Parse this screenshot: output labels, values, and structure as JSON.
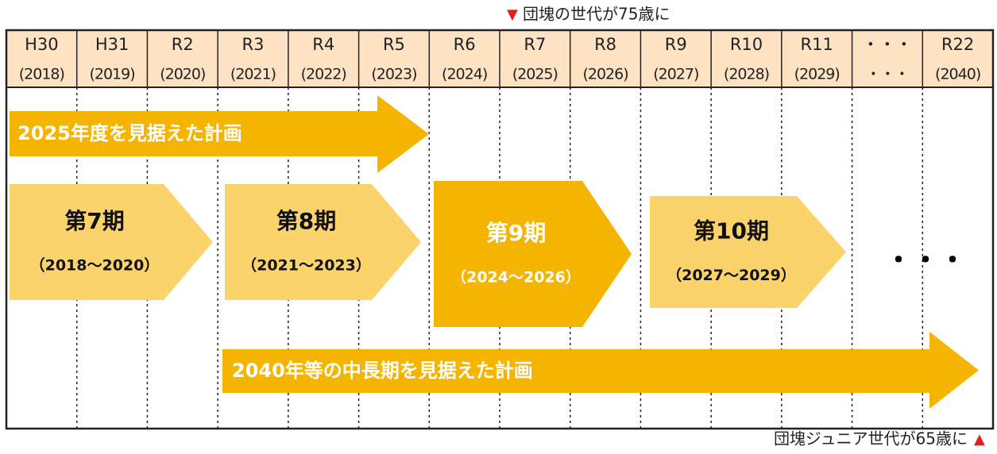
{
  "top_note": {
    "marker": "▼",
    "text": "団塊の世代が75歳に"
  },
  "bottom_note": {
    "text": "団塊ジュニア世代が65歳に",
    "marker": "▲"
  },
  "columns": [
    {
      "era": "H30",
      "year": "(2018)"
    },
    {
      "era": "H31",
      "year": "(2019)"
    },
    {
      "era": "R2",
      "year": "(2020)"
    },
    {
      "era": "R3",
      "year": "(2021)"
    },
    {
      "era": "R4",
      "year": "(2022)"
    },
    {
      "era": "R5",
      "year": "(2023)"
    },
    {
      "era": "R6",
      "year": "(2024)"
    },
    {
      "era": "R7",
      "year": "(2025)"
    },
    {
      "era": "R8",
      "year": "(2026)"
    },
    {
      "era": "R9",
      "year": "(2027)"
    },
    {
      "era": "R10",
      "year": "(2028)"
    },
    {
      "era": "R11",
      "year": "(2029)"
    },
    {
      "era": "・・・",
      "year": "・・・"
    },
    {
      "era": "R22",
      "year": "(2040)"
    }
  ],
  "plans": [
    "2025年度を見据えた計画",
    "2040年等の中長期を見据えた計画"
  ],
  "phases": [
    {
      "title": "第7期",
      "years": "（2018～2020）"
    },
    {
      "title": "第8期",
      "years": "（2021～2023）"
    },
    {
      "title": "第9期",
      "years": "（2024～2026）"
    },
    {
      "title": "第10期",
      "years": "（2027～2029）"
    }
  ],
  "continuation": "・・・"
}
